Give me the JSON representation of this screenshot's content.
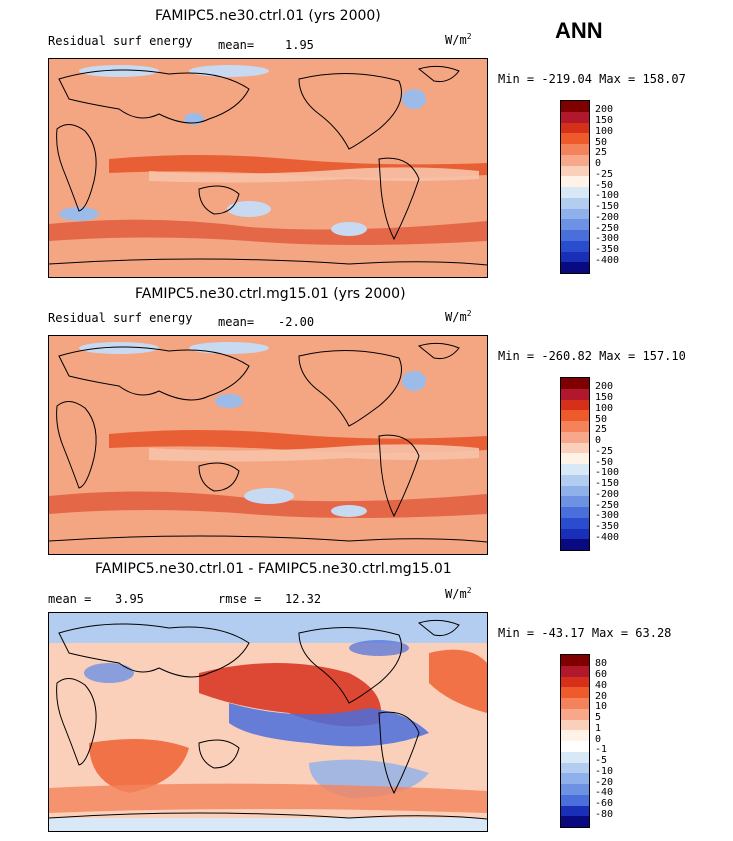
{
  "season": "ANN",
  "units": "W/m",
  "units_sup": "2",
  "panels": [
    {
      "title": "FAMIPC5.ne30.ctrl.01 (yrs 2000)",
      "subtitle": "Residual surf energy",
      "stat1_label": "mean=",
      "stat1_value": "1.95",
      "stat2_label": "",
      "stat2_value": "",
      "minmax": "Min = -219.04 Max = 158.07",
      "colorbar_labels": [
        "200",
        "150",
        "100",
        "50",
        "25",
        "0",
        "-25",
        "-50",
        "-100",
        "-150",
        "-200",
        "-250",
        "-300",
        "-350",
        "-400"
      ],
      "colorbar_colors": [
        "#7f0000",
        "#b2182b",
        "#d6301b",
        "#ef5a2b",
        "#f4835c",
        "#f7a88a",
        "#fbd0bb",
        "#fff3e8",
        "#d8e8f7",
        "#b3cdf0",
        "#8fb0ea",
        "#6d91e3",
        "#4a6fdb",
        "#2a4dd0",
        "#1a2fb8",
        "#0a0a80"
      ]
    },
    {
      "title": "FAMIPC5.ne30.ctrl.mg15.01 (yrs 2000)",
      "subtitle": "Residual surf energy",
      "stat1_label": "mean=",
      "stat1_value": "-2.00",
      "stat2_label": "",
      "stat2_value": "",
      "minmax": "Min = -260.82 Max = 157.10",
      "colorbar_labels": [
        "200",
        "150",
        "100",
        "50",
        "25",
        "0",
        "-25",
        "-50",
        "-100",
        "-150",
        "-200",
        "-250",
        "-300",
        "-350",
        "-400"
      ],
      "colorbar_colors": [
        "#7f0000",
        "#b2182b",
        "#d6301b",
        "#ef5a2b",
        "#f4835c",
        "#f7a88a",
        "#fbd0bb",
        "#fff3e8",
        "#d8e8f7",
        "#b3cdf0",
        "#8fb0ea",
        "#6d91e3",
        "#4a6fdb",
        "#2a4dd0",
        "#1a2fb8",
        "#0a0a80"
      ]
    },
    {
      "title": "FAMIPC5.ne30.ctrl.01 - FAMIPC5.ne30.ctrl.mg15.01",
      "subtitle": "",
      "stat1_label": "mean =",
      "stat1_value": "3.95",
      "stat2_label": "rmse =",
      "stat2_value": "12.32",
      "minmax": "Min = -43.17 Max = 63.28",
      "colorbar_labels": [
        "80",
        "60",
        "40",
        "20",
        "10",
        "5",
        "1",
        "0",
        "-1",
        "-5",
        "-10",
        "-20",
        "-40",
        "-60",
        "-80"
      ],
      "colorbar_colors": [
        "#7f0000",
        "#b2182b",
        "#d6301b",
        "#ef5a2b",
        "#f4835c",
        "#f7a88a",
        "#fbd0bb",
        "#fff3e8",
        "#ffffff",
        "#d8e8f7",
        "#b3cdf0",
        "#8fb0ea",
        "#6d91e3",
        "#4a6fdb",
        "#1a2fb8",
        "#0a0a80"
      ]
    }
  ]
}
